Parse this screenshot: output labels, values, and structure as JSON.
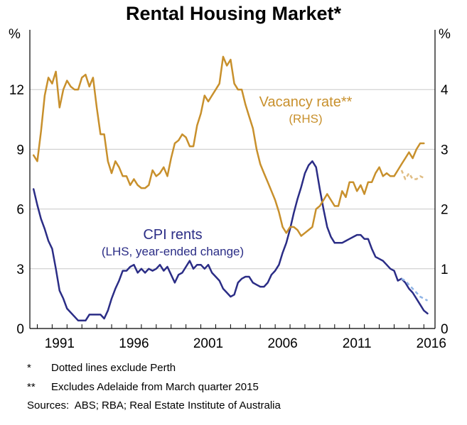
{
  "title": "Rental Housing Market*",
  "units": {
    "left": "%",
    "right": "%"
  },
  "footnotes": [
    {
      "mark": "*",
      "text": "Dotted lines exclude Perth"
    },
    {
      "mark": "**",
      "text": "Excludes Adelaide from March quarter 2015"
    }
  ],
  "sources": "Sources:  ABS; RBA; Real Estate Institute of Australia",
  "colors": {
    "cpi": "#2b2d86",
    "cpi_ex_perth": "#8fb4e6",
    "vacancy": "#c8902c",
    "vacancy_ex_perth": "#e0bd84",
    "axis": "#000000",
    "grid": "#c8c8c8"
  },
  "chart_data": {
    "type": "line",
    "x_ticks": [
      "1991",
      "1996",
      "2001",
      "2006",
      "2011",
      "2016"
    ],
    "left_axis": {
      "ylim": [
        0,
        15
      ],
      "ticks": [
        "0",
        "3",
        "6",
        "9",
        "12"
      ]
    },
    "right_axis": {
      "ylim": [
        0,
        5
      ],
      "ticks": [
        "0",
        "1",
        "2",
        "3",
        "4"
      ]
    },
    "grid": true,
    "annotations": [
      {
        "series": "vacancy",
        "lines": [
          "Vacancy rate**",
          "(RHS)"
        ]
      },
      {
        "series": "cpi",
        "lines": [
          "CPI rents",
          "(LHS, year-ended change)"
        ]
      }
    ],
    "series": [
      {
        "key": "cpi",
        "axis": "left",
        "style": "solid",
        "points": [
          [
            1989.75,
            7.0
          ],
          [
            1990.0,
            6.2
          ],
          [
            1990.25,
            5.5
          ],
          [
            1990.5,
            5.0
          ],
          [
            1990.75,
            4.4
          ],
          [
            1991.0,
            4.0
          ],
          [
            1991.25,
            3.0
          ],
          [
            1991.5,
            1.9
          ],
          [
            1991.75,
            1.5
          ],
          [
            1992.0,
            1.0
          ],
          [
            1992.25,
            0.8
          ],
          [
            1992.5,
            0.6
          ],
          [
            1992.75,
            0.4
          ],
          [
            1993.0,
            0.4
          ],
          [
            1993.25,
            0.4
          ],
          [
            1993.5,
            0.7
          ],
          [
            1993.75,
            0.7
          ],
          [
            1994.0,
            0.7
          ],
          [
            1994.25,
            0.7
          ],
          [
            1994.5,
            0.5
          ],
          [
            1994.75,
            0.9
          ],
          [
            1995.0,
            1.5
          ],
          [
            1995.25,
            2.0
          ],
          [
            1995.5,
            2.4
          ],
          [
            1995.75,
            2.9
          ],
          [
            1996.0,
            2.9
          ],
          [
            1996.25,
            3.1
          ],
          [
            1996.5,
            3.2
          ],
          [
            1996.75,
            2.8
          ],
          [
            1997.0,
            3.0
          ],
          [
            1997.25,
            2.8
          ],
          [
            1997.5,
            3.0
          ],
          [
            1997.75,
            2.9
          ],
          [
            1998.0,
            3.0
          ],
          [
            1998.25,
            3.2
          ],
          [
            1998.5,
            2.9
          ],
          [
            1998.75,
            3.1
          ],
          [
            1999.0,
            2.7
          ],
          [
            1999.25,
            2.3
          ],
          [
            1999.5,
            2.7
          ],
          [
            1999.75,
            2.8
          ],
          [
            2000.0,
            3.1
          ],
          [
            2000.25,
            3.4
          ],
          [
            2000.5,
            3.0
          ],
          [
            2000.75,
            3.2
          ],
          [
            2001.0,
            3.2
          ],
          [
            2001.25,
            3.0
          ],
          [
            2001.5,
            3.2
          ],
          [
            2001.75,
            2.8
          ],
          [
            2002.0,
            2.6
          ],
          [
            2002.25,
            2.4
          ],
          [
            2002.5,
            2.0
          ],
          [
            2002.75,
            1.8
          ],
          [
            2003.0,
            1.6
          ],
          [
            2003.25,
            1.7
          ],
          [
            2003.5,
            2.3
          ],
          [
            2003.75,
            2.5
          ],
          [
            2004.0,
            2.6
          ],
          [
            2004.25,
            2.6
          ],
          [
            2004.5,
            2.3
          ],
          [
            2004.75,
            2.2
          ],
          [
            2005.0,
            2.1
          ],
          [
            2005.25,
            2.1
          ],
          [
            2005.5,
            2.3
          ],
          [
            2005.75,
            2.7
          ],
          [
            2006.0,
            2.9
          ],
          [
            2006.25,
            3.2
          ],
          [
            2006.5,
            3.8
          ],
          [
            2006.75,
            4.3
          ],
          [
            2007.0,
            5.0
          ],
          [
            2007.25,
            5.8
          ],
          [
            2007.5,
            6.5
          ],
          [
            2007.75,
            7.1
          ],
          [
            2008.0,
            7.8
          ],
          [
            2008.25,
            8.2
          ],
          [
            2008.5,
            8.4
          ],
          [
            2008.75,
            8.1
          ],
          [
            2009.0,
            7.0
          ],
          [
            2009.25,
            6.0
          ],
          [
            2009.5,
            5.1
          ],
          [
            2009.75,
            4.6
          ],
          [
            2010.0,
            4.3
          ],
          [
            2010.25,
            4.3
          ],
          [
            2010.5,
            4.3
          ],
          [
            2010.75,
            4.4
          ],
          [
            2011.0,
            4.5
          ],
          [
            2011.25,
            4.6
          ],
          [
            2011.5,
            4.7
          ],
          [
            2011.75,
            4.7
          ],
          [
            2012.0,
            4.5
          ],
          [
            2012.25,
            4.5
          ],
          [
            2012.5,
            4.0
          ],
          [
            2012.75,
            3.6
          ],
          [
            2013.0,
            3.5
          ],
          [
            2013.25,
            3.4
          ],
          [
            2013.5,
            3.2
          ],
          [
            2013.75,
            3.0
          ],
          [
            2014.0,
            2.9
          ],
          [
            2014.25,
            2.4
          ],
          [
            2014.5,
            2.5
          ],
          [
            2014.75,
            2.3
          ],
          [
            2015.0,
            2.0
          ],
          [
            2015.25,
            1.8
          ],
          [
            2015.5,
            1.5
          ],
          [
            2015.75,
            1.2
          ],
          [
            2016.0,
            0.9
          ],
          [
            2016.25,
            0.75
          ]
        ]
      },
      {
        "key": "cpi_ex_perth",
        "axis": "left",
        "style": "dotted",
        "points": [
          [
            2014.5,
            2.5
          ],
          [
            2014.75,
            2.4
          ],
          [
            2015.0,
            2.2
          ],
          [
            2015.25,
            2.0
          ],
          [
            2015.5,
            1.8
          ],
          [
            2015.75,
            1.6
          ],
          [
            2016.0,
            1.5
          ],
          [
            2016.25,
            1.4
          ]
        ]
      },
      {
        "key": "vacancy",
        "axis": "right",
        "style": "solid",
        "points": [
          [
            1989.75,
            2.9
          ],
          [
            1990.0,
            2.8
          ],
          [
            1990.25,
            3.3
          ],
          [
            1990.5,
            3.9
          ],
          [
            1990.75,
            4.2
          ],
          [
            1991.0,
            4.1
          ],
          [
            1991.25,
            4.3
          ],
          [
            1991.5,
            3.7
          ],
          [
            1991.75,
            4.0
          ],
          [
            1992.0,
            4.15
          ],
          [
            1992.25,
            4.05
          ],
          [
            1992.5,
            4.0
          ],
          [
            1992.75,
            4.0
          ],
          [
            1993.0,
            4.2
          ],
          [
            1993.25,
            4.25
          ],
          [
            1993.5,
            4.05
          ],
          [
            1993.75,
            4.2
          ],
          [
            1994.0,
            3.7
          ],
          [
            1994.25,
            3.25
          ],
          [
            1994.5,
            3.25
          ],
          [
            1994.75,
            2.8
          ],
          [
            1995.0,
            2.6
          ],
          [
            1995.25,
            2.8
          ],
          [
            1995.5,
            2.7
          ],
          [
            1995.75,
            2.55
          ],
          [
            1996.0,
            2.55
          ],
          [
            1996.25,
            2.4
          ],
          [
            1996.5,
            2.5
          ],
          [
            1996.75,
            2.4
          ],
          [
            1997.0,
            2.35
          ],
          [
            1997.25,
            2.35
          ],
          [
            1997.5,
            2.4
          ],
          [
            1997.75,
            2.65
          ],
          [
            1998.0,
            2.55
          ],
          [
            1998.25,
            2.6
          ],
          [
            1998.5,
            2.7
          ],
          [
            1998.75,
            2.55
          ],
          [
            1999.0,
            2.85
          ],
          [
            1999.25,
            3.1
          ],
          [
            1999.5,
            3.15
          ],
          [
            1999.75,
            3.25
          ],
          [
            2000.0,
            3.2
          ],
          [
            2000.25,
            3.05
          ],
          [
            2000.5,
            3.05
          ],
          [
            2000.75,
            3.4
          ],
          [
            2001.0,
            3.6
          ],
          [
            2001.25,
            3.9
          ],
          [
            2001.5,
            3.8
          ],
          [
            2001.75,
            3.9
          ],
          [
            2002.0,
            4.0
          ],
          [
            2002.25,
            4.1
          ],
          [
            2002.5,
            4.55
          ],
          [
            2002.75,
            4.4
          ],
          [
            2003.0,
            4.5
          ],
          [
            2003.25,
            4.1
          ],
          [
            2003.5,
            4.0
          ],
          [
            2003.75,
            4.0
          ],
          [
            2004.0,
            3.75
          ],
          [
            2004.25,
            3.55
          ],
          [
            2004.5,
            3.35
          ],
          [
            2004.75,
            3.0
          ],
          [
            2005.0,
            2.75
          ],
          [
            2005.25,
            2.6
          ],
          [
            2005.5,
            2.45
          ],
          [
            2005.75,
            2.3
          ],
          [
            2006.0,
            2.15
          ],
          [
            2006.25,
            1.95
          ],
          [
            2006.5,
            1.7
          ],
          [
            2006.75,
            1.6
          ],
          [
            2007.0,
            1.7
          ],
          [
            2007.25,
            1.7
          ],
          [
            2007.5,
            1.65
          ],
          [
            2007.75,
            1.55
          ],
          [
            2008.0,
            1.6
          ],
          [
            2008.25,
            1.65
          ],
          [
            2008.5,
            1.7
          ],
          [
            2008.75,
            2.0
          ],
          [
            2009.0,
            2.05
          ],
          [
            2009.25,
            2.15
          ],
          [
            2009.5,
            2.25
          ],
          [
            2009.75,
            2.15
          ],
          [
            2010.0,
            2.05
          ],
          [
            2010.25,
            2.05
          ],
          [
            2010.5,
            2.3
          ],
          [
            2010.75,
            2.2
          ],
          [
            2011.0,
            2.45
          ],
          [
            2011.25,
            2.45
          ],
          [
            2011.5,
            2.3
          ],
          [
            2011.75,
            2.4
          ],
          [
            2012.0,
            2.25
          ],
          [
            2012.25,
            2.45
          ],
          [
            2012.5,
            2.45
          ],
          [
            2012.75,
            2.6
          ],
          [
            2013.0,
            2.7
          ],
          [
            2013.25,
            2.55
          ],
          [
            2013.5,
            2.6
          ],
          [
            2013.75,
            2.55
          ],
          [
            2014.0,
            2.55
          ],
          [
            2014.25,
            2.65
          ],
          [
            2014.5,
            2.75
          ],
          [
            2014.75,
            2.85
          ],
          [
            2015.0,
            2.95
          ],
          [
            2015.25,
            2.85
          ],
          [
            2015.5,
            3.0
          ],
          [
            2015.75,
            3.1
          ],
          [
            2016.0,
            3.1
          ]
        ]
      },
      {
        "key": "vacancy_ex_perth",
        "axis": "right",
        "style": "dotted",
        "points": [
          [
            2014.5,
            2.65
          ],
          [
            2014.75,
            2.5
          ],
          [
            2015.0,
            2.6
          ],
          [
            2015.25,
            2.5
          ],
          [
            2015.5,
            2.5
          ],
          [
            2015.75,
            2.55
          ],
          [
            2016.0,
            2.52
          ]
        ]
      }
    ]
  }
}
